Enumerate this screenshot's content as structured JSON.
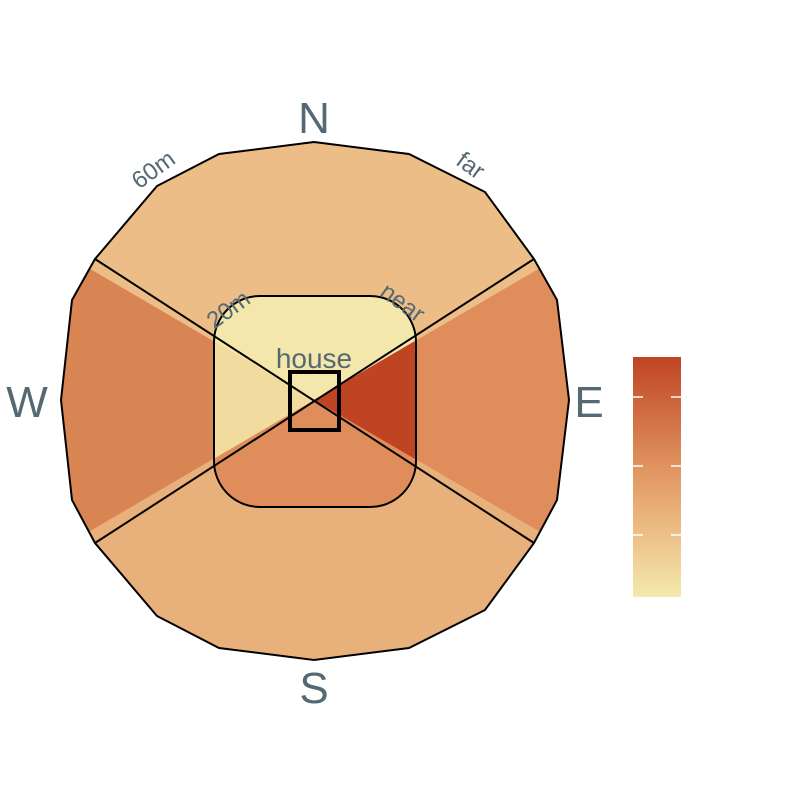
{
  "compass": {
    "north": "N",
    "south": "S",
    "east": "E",
    "west": "W"
  },
  "rings": {
    "inner": {
      "distance_label": "20m",
      "zone_label": "near"
    },
    "outer": {
      "distance_label": "60m",
      "zone_label": "far"
    }
  },
  "center": {
    "label": "house"
  },
  "colors": {
    "outer_north": "#ecbd86",
    "outer_south": "#e8b07b",
    "outer_west": "#d98453",
    "outer_east": "#df8d5a",
    "inner_north": "#f4e7ab",
    "inner_west": "#f2db9e",
    "inner_south": "#df8d5a",
    "inner_east": "#bf4424",
    "outline": "#000000",
    "label_text": "#546a73"
  },
  "legend": {
    "gradient_top": "#bf4424",
    "gradient_middle": "#e39a64",
    "gradient_bottom": "#f5e9ad"
  }
}
